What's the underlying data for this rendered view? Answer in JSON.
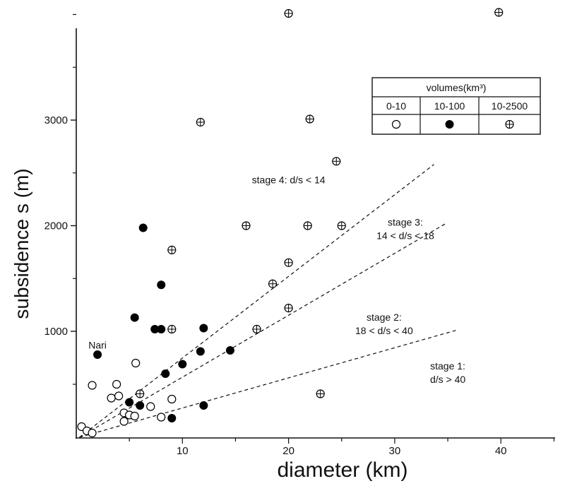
{
  "chart_data": {
    "type": "scatter",
    "xlabel": "diameter (km)",
    "ylabel": "subsidence s (m)",
    "xlim": [
      0,
      45
    ],
    "x_ticks": [
      10,
      20,
      30,
      40
    ],
    "y_ticks": [
      1000,
      2000,
      3000
    ],
    "y_axis_scale": "piecewise",
    "y_axis_note": "upper segment shown as 1000 m per tick spacing from 1000 to 3000 m, lower segment below 1000 m compressed",
    "series": [
      {
        "name": "0-10",
        "marker": "open-circle",
        "points": [
          {
            "x": 0.5,
            "y": 100
          },
          {
            "x": 1,
            "y": 60
          },
          {
            "x": 1.5,
            "y": 40
          },
          {
            "x": 1.5,
            "y": 490
          },
          {
            "x": 3.3,
            "y": 370
          },
          {
            "x": 3.8,
            "y": 500
          },
          {
            "x": 4,
            "y": 390
          },
          {
            "x": 4.5,
            "y": 230
          },
          {
            "x": 4.5,
            "y": 150
          },
          {
            "x": 5,
            "y": 210
          },
          {
            "x": 5.5,
            "y": 200
          },
          {
            "x": 5.6,
            "y": 700
          },
          {
            "x": 7,
            "y": 290
          },
          {
            "x": 8,
            "y": 190
          },
          {
            "x": 9,
            "y": 360
          }
        ]
      },
      {
        "name": "10-100",
        "marker": "filled-circle",
        "points": [
          {
            "x": 2,
            "y": 780
          },
          {
            "x": 5,
            "y": 330
          },
          {
            "x": 6,
            "y": 300
          },
          {
            "x": 5.5,
            "y": 1130
          },
          {
            "x": 6.3,
            "y": 1980
          },
          {
            "x": 7.4,
            "y": 1020
          },
          {
            "x": 8,
            "y": 1440
          },
          {
            "x": 8,
            "y": 1020
          },
          {
            "x": 8.4,
            "y": 600
          },
          {
            "x": 9,
            "y": 180
          },
          {
            "x": 10,
            "y": 690
          },
          {
            "x": 11.7,
            "y": 810
          },
          {
            "x": 12,
            "y": 1030
          },
          {
            "x": 12,
            "y": 300
          },
          {
            "x": 14.5,
            "y": 820
          }
        ]
      },
      {
        "name": "10-2500",
        "marker": "circle-plus",
        "points": [
          {
            "x": 6,
            "y": 410
          },
          {
            "x": 9,
            "y": 1770
          },
          {
            "x": 9,
            "y": 1020
          },
          {
            "x": 11.7,
            "y": 2980
          },
          {
            "x": 16,
            "y": 2000
          },
          {
            "x": 17,
            "y": 1020
          },
          {
            "x": 18.5,
            "y": 1450
          },
          {
            "x": 20,
            "y": 4010
          },
          {
            "x": 20,
            "y": 1650
          },
          {
            "x": 20,
            "y": 1220
          },
          {
            "x": 21.8,
            "y": 2000
          },
          {
            "x": 22,
            "y": 3010
          },
          {
            "x": 23,
            "y": 410
          },
          {
            "x": 24.5,
            "y": 2610
          },
          {
            "x": 25,
            "y": 2000
          },
          {
            "x": 39.8,
            "y": 4020
          }
        ]
      }
    ],
    "reference_lines": [
      {
        "style": "dashed",
        "ratio": "d/s = 14",
        "from": [
          0.3,
          0
        ],
        "to": [
          33.7,
          2580
        ]
      },
      {
        "style": "dashed",
        "ratio": "d/s = 18",
        "from": [
          0.3,
          0
        ],
        "to": [
          34.8,
          2020
        ]
      },
      {
        "style": "dashed",
        "ratio": "d/s = 40",
        "from": [
          0.3,
          0
        ],
        "to": [
          35.8,
          1010
        ]
      }
    ],
    "annotations": [
      {
        "id": "nari",
        "text": "Nari",
        "x": 2,
        "y": 870
      },
      {
        "id": "stage4",
        "lines": [
          "stage 4: d/s < 14"
        ],
        "x": 20,
        "y": 2400
      },
      {
        "id": "stage3",
        "lines": [
          "stage 3:",
          "14 < d/s < 18"
        ],
        "x": 31,
        "y": 2000
      },
      {
        "id": "stage2",
        "lines": [
          "stage 2:",
          "18 < d/s < 40"
        ],
        "x": 29,
        "y": 1100
      },
      {
        "id": "stage1",
        "lines": [
          "stage 1:",
          "d/s > 40"
        ],
        "x": 35,
        "y": 640
      }
    ],
    "legend": {
      "title": "volumes(km³)",
      "entries": [
        "0-10",
        "10-100",
        "10-2500"
      ],
      "placement": "top-right"
    }
  }
}
